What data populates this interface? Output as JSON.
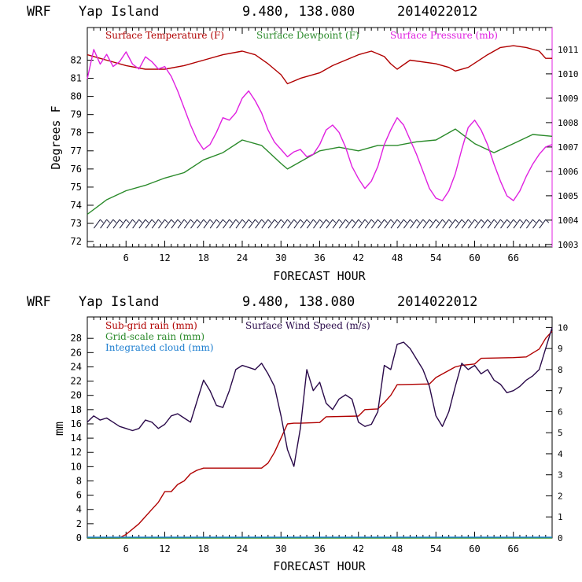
{
  "colors": {
    "temperature": "#b00000",
    "dewpoint": "#2a8a2a",
    "pressure": "#e020e0",
    "subgrid_rain": "#b00000",
    "gridscale_rain": "#2a8a2a",
    "cloud": "#1e7fd0",
    "wind": "#2a0a4a",
    "barbs": "#1a1a3a"
  },
  "chart_data": [
    {
      "type": "line",
      "header": {
        "model": "WRF",
        "location": "Yap Island",
        "coords": "9.480, 138.080",
        "run": "2014022012"
      },
      "xlabel": "FORECAST HOUR",
      "ylabel": "Degrees F",
      "xlim": [
        0,
        72
      ],
      "xticks": [
        6,
        12,
        18,
        24,
        30,
        36,
        42,
        48,
        54,
        60,
        66
      ],
      "ylim": [
        71.7,
        83.8
      ],
      "yticks": [
        72,
        73,
        74,
        75,
        76,
        77,
        78,
        79,
        80,
        81,
        82
      ],
      "y2lim": [
        1002.9,
        1011.9
      ],
      "y2ticks": [
        1003,
        1004,
        1005,
        1006,
        1007,
        1008,
        1009,
        1010,
        1011
      ],
      "series": [
        {
          "name": "Surface Temperature (F)",
          "axis": "left",
          "x": [
            0,
            3,
            6,
            9,
            12,
            15,
            18,
            21,
            24,
            26,
            28,
            30,
            31,
            33,
            36,
            38,
            42,
            44,
            46,
            47,
            48,
            50,
            54,
            56,
            57,
            59,
            62,
            64,
            66,
            68,
            70,
            71,
            72
          ],
          "y": [
            82.3,
            82.0,
            81.7,
            81.5,
            81.5,
            81.7,
            82.0,
            82.3,
            82.5,
            82.3,
            81.8,
            81.2,
            80.7,
            81.0,
            81.3,
            81.7,
            82.3,
            82.5,
            82.2,
            81.8,
            81.5,
            82.0,
            81.8,
            81.6,
            81.4,
            81.6,
            82.3,
            82.7,
            82.8,
            82.7,
            82.5,
            82.1,
            82.1
          ]
        },
        {
          "name": "Surface Dewpoint (F)",
          "axis": "left",
          "x": [
            0,
            3,
            6,
            9,
            12,
            15,
            18,
            21,
            24,
            27,
            30,
            31,
            33,
            36,
            39,
            42,
            45,
            48,
            51,
            54,
            57,
            60,
            63,
            66,
            69,
            72
          ],
          "y": [
            73.5,
            74.3,
            74.8,
            75.1,
            75.5,
            75.8,
            76.5,
            76.9,
            77.6,
            77.3,
            76.3,
            76.0,
            76.4,
            77.0,
            77.2,
            77.0,
            77.3,
            77.3,
            77.5,
            77.6,
            78.2,
            77.4,
            76.9,
            77.4,
            77.9,
            77.8
          ]
        },
        {
          "name": "Surface Pressure (mb)",
          "axis": "right",
          "x": [
            0,
            1,
            2,
            3,
            4,
            5,
            6,
            7,
            8,
            9,
            10,
            11,
            12,
            13,
            14,
            15,
            16,
            17,
            18,
            19,
            20,
            21,
            22,
            23,
            24,
            25,
            26,
            27,
            28,
            29,
            30,
            31,
            32,
            33,
            34,
            35,
            36,
            37,
            38,
            39,
            40,
            41,
            42,
            43,
            44,
            45,
            46,
            47,
            48,
            49,
            50,
            51,
            52,
            53,
            54,
            55,
            56,
            57,
            58,
            59,
            60,
            61,
            62,
            63,
            64,
            65,
            66,
            67,
            68,
            69,
            70,
            71,
            72
          ],
          "y": [
            1009.8,
            1011.0,
            1010.4,
            1010.8,
            1010.3,
            1010.5,
            1010.9,
            1010.4,
            1010.2,
            1010.7,
            1010.5,
            1010.2,
            1010.3,
            1009.9,
            1009.3,
            1008.6,
            1007.9,
            1007.3,
            1006.9,
            1007.1,
            1007.6,
            1008.2,
            1008.1,
            1008.4,
            1009.0,
            1009.3,
            1008.9,
            1008.4,
            1007.7,
            1007.2,
            1006.9,
            1006.6,
            1006.8,
            1006.9,
            1006.6,
            1006.7,
            1007.1,
            1007.7,
            1007.9,
            1007.6,
            1007.0,
            1006.2,
            1005.7,
            1005.3,
            1005.6,
            1006.2,
            1007.1,
            1007.7,
            1008.2,
            1007.9,
            1007.3,
            1006.7,
            1006.0,
            1005.3,
            1004.9,
            1004.8,
            1005.2,
            1005.9,
            1006.9,
            1007.8,
            1008.1,
            1007.7,
            1007.1,
            1006.3,
            1005.6,
            1005.0,
            1004.8,
            1005.2,
            1005.8,
            1006.3,
            1006.7,
            1007.0,
            1007.1
          ]
        }
      ],
      "legend": "top",
      "wind_barbs": "row of wind barbs along the bottom of the upper panel"
    },
    {
      "type": "line",
      "header": {
        "model": "WRF",
        "location": "Yap Island",
        "coords": "9.480, 138.080",
        "run": "2014022012"
      },
      "xlabel": "FORECAST HOUR",
      "ylabel": "mm",
      "xlim": [
        0,
        72
      ],
      "xticks": [
        6,
        12,
        18,
        24,
        30,
        36,
        42,
        48,
        54,
        60,
        66
      ],
      "ylim": [
        0,
        31
      ],
      "yticks": [
        0,
        2,
        4,
        6,
        8,
        10,
        12,
        14,
        16,
        18,
        20,
        22,
        24,
        26,
        28
      ],
      "y2lim": [
        0,
        10.5
      ],
      "y2ticks": [
        0,
        1,
        2,
        3,
        4,
        5,
        6,
        7,
        8,
        9,
        10
      ],
      "series": [
        {
          "name": "Sub-grid rain (mm)",
          "axis": "left",
          "x": [
            0,
            5,
            6,
            8,
            10,
            11,
            12,
            13,
            14,
            15,
            16,
            17,
            18,
            24,
            27,
            28,
            29,
            30,
            31,
            32,
            33,
            36,
            37,
            42,
            43,
            45,
            46,
            47,
            48,
            53,
            54,
            55,
            56,
            57,
            58,
            60,
            61,
            66,
            68,
            70,
            71,
            72
          ],
          "y": [
            0,
            0,
            0.5,
            2,
            4,
            5,
            6.5,
            6.5,
            7.5,
            8,
            9,
            9.5,
            9.8,
            9.8,
            9.8,
            10.5,
            12,
            14,
            16,
            16.1,
            16.1,
            16.2,
            17,
            17.1,
            18,
            18.1,
            19,
            20,
            21.5,
            21.6,
            22.5,
            23,
            23.5,
            24,
            24.2,
            24.4,
            25.2,
            25.3,
            25.4,
            26.5,
            28,
            29
          ]
        },
        {
          "name": "Grid-scale rain (mm)",
          "axis": "left",
          "x": [
            0,
            72
          ],
          "y": [
            0,
            0
          ]
        },
        {
          "name": "Integrated cloud (mm)",
          "axis": "left",
          "x": [
            0,
            72
          ],
          "y": [
            0.1,
            0.1
          ]
        },
        {
          "name": "Surface Wind Speed (m/s)",
          "axis": "right",
          "x": [
            0,
            1,
            2,
            3,
            4,
            5,
            6,
            7,
            8,
            9,
            10,
            11,
            12,
            13,
            14,
            15,
            16,
            17,
            18,
            19,
            20,
            21,
            22,
            23,
            24,
            25,
            26,
            27,
            28,
            29,
            30,
            31,
            32,
            33,
            34,
            35,
            36,
            37,
            38,
            39,
            40,
            41,
            42,
            43,
            44,
            45,
            46,
            47,
            48,
            49,
            50,
            51,
            52,
            53,
            54,
            55,
            56,
            57,
            58,
            59,
            60,
            61,
            62,
            63,
            64,
            65,
            66,
            67,
            68,
            69,
            70,
            71,
            72
          ],
          "y": [
            5.5,
            5.8,
            5.6,
            5.7,
            5.5,
            5.3,
            5.2,
            5.1,
            5.2,
            5.6,
            5.5,
            5.2,
            5.4,
            5.8,
            5.9,
            5.7,
            5.5,
            6.5,
            7.5,
            7.0,
            6.3,
            6.2,
            7.0,
            8.0,
            8.2,
            8.1,
            8.0,
            8.3,
            7.8,
            7.2,
            5.8,
            4.2,
            3.4,
            5.2,
            8.0,
            7.0,
            7.4,
            6.4,
            6.1,
            6.6,
            6.8,
            6.6,
            5.5,
            5.3,
            5.4,
            6.0,
            8.2,
            8.0,
            9.2,
            9.3,
            9.0,
            8.5,
            8.0,
            7.2,
            5.8,
            5.3,
            6.0,
            7.2,
            8.3,
            8.0,
            8.2,
            7.8,
            8.0,
            7.5,
            7.3,
            6.9,
            7.0,
            7.2,
            7.5,
            7.7,
            8.0,
            9.0,
            10.0
          ]
        }
      ],
      "legend": "top-left"
    }
  ]
}
